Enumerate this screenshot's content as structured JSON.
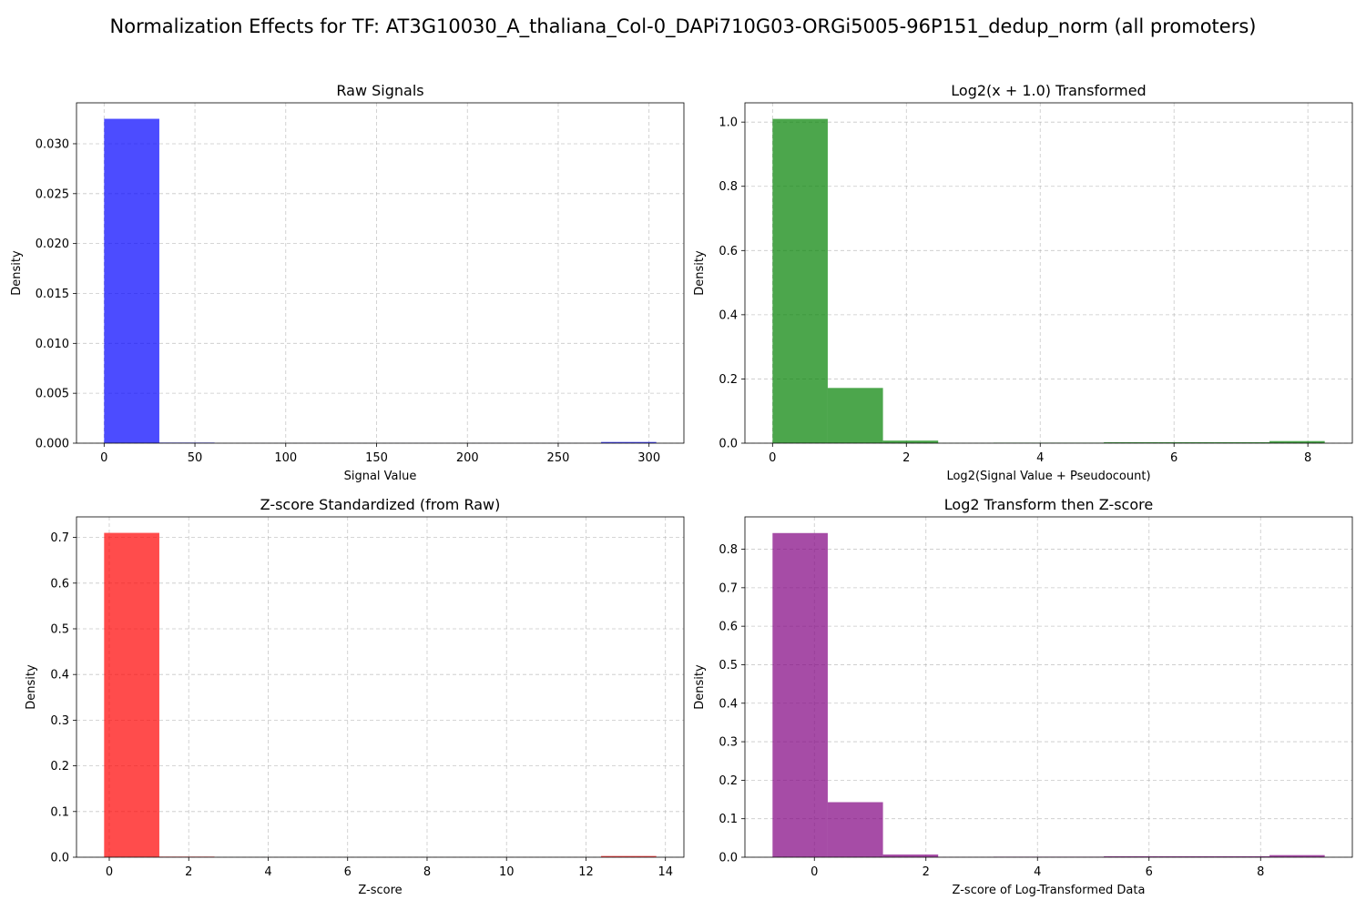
{
  "figure": {
    "suptitle": "Normalization Effects for TF: AT3G10030_A_thaliana_Col-0_DAPi710G03-ORGi5005-96P151_dedup_norm (all promoters)"
  },
  "chart_data": [
    {
      "type": "bar",
      "title": "Raw Signals",
      "xlabel": "Signal Value",
      "ylabel": "Density",
      "color": "#0000ff",
      "bin_edges": [
        0,
        30.4,
        60.8,
        91.2,
        121.6,
        152,
        182.4,
        212.8,
        243.2,
        273.6,
        304
      ],
      "values": [
        0.0325,
        6e-05,
        5e-06,
        5e-06,
        5e-06,
        5e-06,
        5e-06,
        5e-06,
        5e-06,
        0.00012
      ],
      "xlim": [
        -15.2,
        319.2
      ],
      "ylim": [
        0,
        0.0341
      ],
      "xticks": [
        0,
        50,
        100,
        150,
        200,
        250,
        300
      ],
      "xtick_labels": [
        "0",
        "50",
        "100",
        "150",
        "200",
        "250",
        "300"
      ],
      "yticks": [
        0,
        0.005,
        0.01,
        0.015,
        0.02,
        0.025,
        0.03
      ],
      "ytick_labels": [
        "0.000",
        "0.005",
        "0.010",
        "0.015",
        "0.020",
        "0.025",
        "0.030"
      ],
      "grid": true
    },
    {
      "type": "bar",
      "title": "Log2(x + 1.0) Transformed",
      "xlabel": "Log2(Signal Value + Pseudocount)",
      "ylabel": "Density",
      "color": "#008000",
      "bin_edges": [
        0,
        0.8252,
        1.6504,
        2.4756,
        3.3008,
        4.126,
        4.9512,
        5.7764,
        6.6016,
        7.4268,
        8.252
      ],
      "values": [
        1.01,
        0.172,
        0.008,
        0.0005,
        0.0015,
        0.0015,
        0.003,
        0.003,
        0.003,
        0.0065
      ],
      "xlim": [
        -0.4126,
        8.6646
      ],
      "ylim": [
        0,
        1.06
      ],
      "xticks": [
        0,
        2,
        4,
        6,
        8
      ],
      "xtick_labels": [
        "0",
        "2",
        "4",
        "6",
        "8"
      ],
      "yticks": [
        0,
        0.2,
        0.4,
        0.6,
        0.8,
        1.0
      ],
      "ytick_labels": [
        "0.0",
        "0.2",
        "0.4",
        "0.6",
        "0.8",
        "1.0"
      ],
      "grid": true
    },
    {
      "type": "bar",
      "title": "Z-score Standardized (from Raw)",
      "xlabel": "Z-score",
      "ylabel": "Density",
      "color": "#ff0000",
      "bin_edges": [
        -0.13,
        1.26,
        2.65,
        4.04,
        5.43,
        6.82,
        8.21,
        9.6,
        10.99,
        12.38,
        13.77
      ],
      "values": [
        0.71,
        0.0013,
        0.0001,
        0.0001,
        0.0001,
        0.0001,
        0.0001,
        0.0001,
        0.0001,
        0.0027
      ],
      "xlim": [
        -0.825,
        14.465
      ],
      "ylim": [
        0,
        0.745
      ],
      "xticks": [
        0,
        2,
        4,
        6,
        8,
        10,
        12,
        14
      ],
      "xtick_labels": [
        "0",
        "2",
        "4",
        "6",
        "8",
        "10",
        "12",
        "14"
      ],
      "yticks": [
        0,
        0.1,
        0.2,
        0.3,
        0.4,
        0.5,
        0.6,
        0.7
      ],
      "ytick_labels": [
        "0.0",
        "0.1",
        "0.2",
        "0.3",
        "0.4",
        "0.5",
        "0.6",
        "0.7"
      ],
      "grid": true
    },
    {
      "type": "bar",
      "title": "Log2 Transform then Z-score",
      "xlabel": "Z-score of Log-Transformed Data",
      "ylabel": "Density",
      "color": "#800080",
      "bin_edges": [
        -0.75,
        0.24,
        1.23,
        2.22,
        3.21,
        4.2,
        5.19,
        6.18,
        7.17,
        8.16,
        9.15
      ],
      "values": [
        0.842,
        0.143,
        0.007,
        0.0005,
        0.0013,
        0.0013,
        0.0025,
        0.0025,
        0.0025,
        0.0055
      ],
      "xlim": [
        -1.245,
        9.645
      ],
      "ylim": [
        0,
        0.884
      ],
      "xticks": [
        0,
        2,
        4,
        6,
        8
      ],
      "xtick_labels": [
        "0",
        "2",
        "4",
        "6",
        "8"
      ],
      "yticks": [
        0,
        0.1,
        0.2,
        0.3,
        0.4,
        0.5,
        0.6,
        0.7,
        0.8
      ],
      "ytick_labels": [
        "0.0",
        "0.1",
        "0.2",
        "0.3",
        "0.4",
        "0.5",
        "0.6",
        "0.7",
        "0.8"
      ],
      "grid": true
    }
  ]
}
